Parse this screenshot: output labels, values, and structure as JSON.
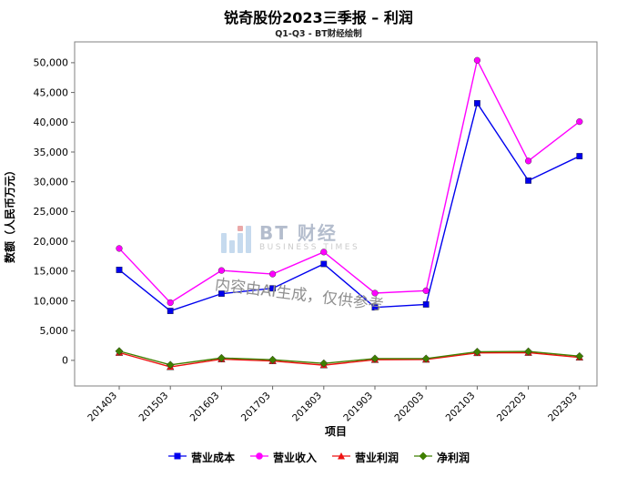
{
  "chart_data": {
    "type": "line",
    "title": "锐奇股份2023三季报 – 利润",
    "subtitle": "Q1-Q3 - BT财经绘制",
    "xlabel": "项目",
    "ylabel": "数额（人民币万元）",
    "categories": [
      "201403",
      "201503",
      "201603",
      "201703",
      "201803",
      "201903",
      "202003",
      "202103",
      "202203",
      "202303"
    ],
    "ylim": [
      -4300,
      53500
    ],
    "yticks": [
      0,
      5000,
      10000,
      15000,
      20000,
      25000,
      30000,
      35000,
      40000,
      45000,
      50000
    ],
    "grid": false,
    "legend_position": "bottom",
    "series": [
      {
        "name": "营业成本",
        "color": "#0000ee",
        "marker": "square",
        "values": [
          15200,
          8300,
          11200,
          12100,
          16200,
          8900,
          9400,
          43200,
          30200,
          34300
        ]
      },
      {
        "name": "营业收入",
        "color": "#ff00ff",
        "marker": "circle",
        "values": [
          18800,
          9700,
          15100,
          14500,
          18200,
          11300,
          11700,
          50400,
          33500,
          40100
        ]
      },
      {
        "name": "营业利润",
        "color": "#ee1111",
        "marker": "triangle",
        "values": [
          1300,
          -1100,
          200,
          -100,
          -800,
          100,
          150,
          1250,
          1300,
          500
        ]
      },
      {
        "name": "净利润",
        "color": "#3f7f00",
        "marker": "diamond",
        "values": [
          1550,
          -750,
          400,
          100,
          -500,
          300,
          300,
          1450,
          1500,
          700
        ]
      }
    ]
  },
  "watermarks": {
    "logo_text": "BT 财经",
    "logo_subtext": "BUSINESS TIMES",
    "ai_note": "内容由AI生成，仅供参考"
  }
}
